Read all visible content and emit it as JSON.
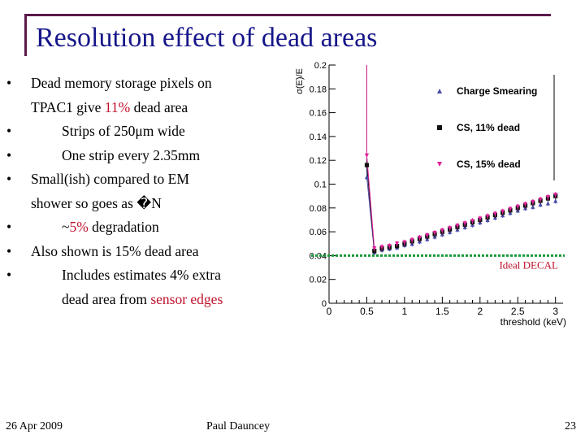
{
  "slide": {
    "title": "Resolution effect of dead areas",
    "bullets": [
      {
        "pre": "Dead memory storage pixels on",
        "line2_pre": "TPAC1 give ",
        "line2_hl": "11%",
        "line2_post": " dead area"
      },
      {
        "text": "Strips of 250μm wide"
      },
      {
        "text": "One strip every 2.35mm"
      },
      {
        "line1": "Small(ish) compared to EM",
        "line2": "shower so goes as �N"
      },
      {
        "pre": "~",
        "hl": "5%",
        "post": " degradation"
      },
      {
        "text": "Also shown is 15% dead area"
      },
      {
        "line1": "Includes estimates 4% extra",
        "line2_pre": "dead area from ",
        "line2_hl": "sensor edges"
      }
    ],
    "bullet_glyph": "•",
    "footer": {
      "date": "26 Apr 2009",
      "author": "Paul Dauncey",
      "page": "23"
    }
  },
  "colors": {
    "title": "#16168a",
    "highlight": "#c0122c",
    "frame": "#5b1a4a",
    "ideal_line": "#1a9a3a",
    "ideal_text": "#c0122c"
  },
  "chart_data": {
    "type": "scatter",
    "ylabel": "σ(E)/E",
    "xlabel": "threshold (keV)",
    "xlim": [
      0,
      3.1
    ],
    "ylim": [
      0,
      0.2
    ],
    "xticks": [
      "0",
      "0.5",
      "1",
      "1.5",
      "2",
      "2.5",
      "3"
    ],
    "xtick_values": [
      0,
      0.5,
      1,
      1.5,
      2,
      2.5,
      3
    ],
    "yticks": [
      "0",
      "0.02",
      "0.04",
      "0.06",
      "0.08",
      "0.1",
      "0.12",
      "0.14",
      "0.16",
      "0.18",
      "0.2"
    ],
    "ytick_values": [
      0,
      0.02,
      0.04,
      0.06,
      0.08,
      0.1,
      0.12,
      0.14,
      0.16,
      0.18,
      0.2
    ],
    "x": [
      0.5,
      0.6,
      0.7,
      0.8,
      0.9,
      1.0,
      1.1,
      1.2,
      1.3,
      1.4,
      1.5,
      1.6,
      1.7,
      1.8,
      1.9,
      2.0,
      2.1,
      2.2,
      2.3,
      2.4,
      2.5,
      2.6,
      2.7,
      2.8,
      2.9,
      3.0
    ],
    "series": [
      {
        "name": "Charge Smearing",
        "marker": "triangle-up",
        "color": "#4a4aa8",
        "values": [
          0.106,
          0.043,
          0.045,
          0.046,
          0.047,
          0.049,
          0.05,
          0.052,
          0.054,
          0.056,
          0.058,
          0.06,
          0.062,
          0.064,
          0.066,
          0.068,
          0.07,
          0.072,
          0.074,
          0.076,
          0.078,
          0.08,
          0.081,
          0.083,
          0.084,
          0.086
        ]
      },
      {
        "name": "CS, 11% dead",
        "marker": "square",
        "color": "#111111",
        "values": [
          0.116,
          0.044,
          0.046,
          0.047,
          0.048,
          0.05,
          0.052,
          0.054,
          0.056,
          0.058,
          0.06,
          0.062,
          0.064,
          0.066,
          0.068,
          0.07,
          0.072,
          0.074,
          0.076,
          0.078,
          0.08,
          0.082,
          0.084,
          0.086,
          0.088,
          0.09
        ]
      },
      {
        "name": "CS, 15% dead",
        "marker": "triangle-down",
        "color": "#e0229a",
        "values": [
          0.124,
          0.046,
          0.047,
          0.048,
          0.05,
          0.051,
          0.053,
          0.055,
          0.057,
          0.059,
          0.061,
          0.063,
          0.065,
          0.067,
          0.069,
          0.071,
          0.073,
          0.075,
          0.077,
          0.079,
          0.081,
          0.083,
          0.085,
          0.087,
          0.089,
          0.091
        ]
      }
    ],
    "reference_line": {
      "label": "Ideal DECAL",
      "y": 0.04
    },
    "legend_position": "top-right"
  }
}
